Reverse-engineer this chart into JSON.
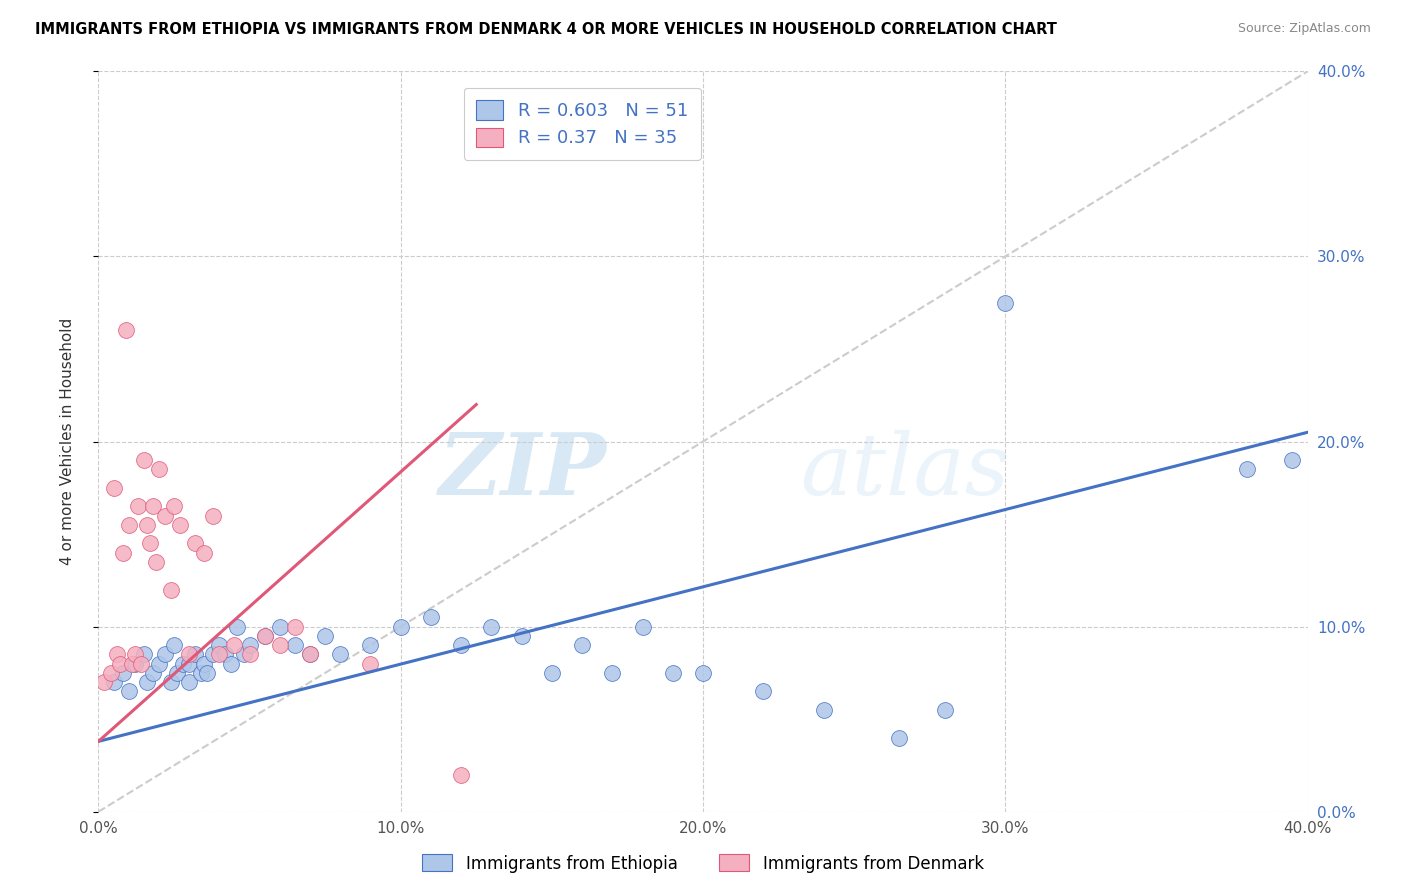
{
  "title": "IMMIGRANTS FROM ETHIOPIA VS IMMIGRANTS FROM DENMARK 4 OR MORE VEHICLES IN HOUSEHOLD CORRELATION CHART",
  "source": "Source: ZipAtlas.com",
  "ylabel": "4 or more Vehicles in Household",
  "legend_label1": "Immigrants from Ethiopia",
  "legend_label2": "Immigrants from Denmark",
  "R1": 0.603,
  "N1": 51,
  "R2": 0.37,
  "N2": 35,
  "color1": "#aec6e8",
  "color2": "#f4b0c0",
  "line_color1": "#4472c4",
  "line_color2": "#e05878",
  "xmin": 0.0,
  "xmax": 0.4,
  "ymin": 0.0,
  "ymax": 0.4,
  "xticks": [
    0.0,
    0.1,
    0.2,
    0.3,
    0.4
  ],
  "yticks": [
    0.0,
    0.1,
    0.2,
    0.3,
    0.4
  ],
  "xtick_labels": [
    "0.0%",
    "10.0%",
    "20.0%",
    "30.0%",
    "40.0%"
  ],
  "ytick_labels_right": [
    "0.0%",
    "10.0%",
    "20.0%",
    "30.0%",
    "40.0%"
  ],
  "watermark_zip": "ZIP",
  "watermark_atlas": "atlas",
  "blue_line_x0": 0.0,
  "blue_line_y0": 0.038,
  "blue_line_x1": 0.4,
  "blue_line_y1": 0.205,
  "pink_line_x0": 0.0,
  "pink_line_y0": 0.038,
  "pink_line_x1": 0.125,
  "pink_line_y1": 0.22,
  "blue_scatter_x": [
    0.005,
    0.008,
    0.01,
    0.012,
    0.015,
    0.016,
    0.018,
    0.02,
    0.022,
    0.024,
    0.025,
    0.026,
    0.028,
    0.03,
    0.03,
    0.032,
    0.034,
    0.035,
    0.036,
    0.038,
    0.04,
    0.042,
    0.044,
    0.046,
    0.048,
    0.05,
    0.055,
    0.06,
    0.065,
    0.07,
    0.075,
    0.08,
    0.09,
    0.1,
    0.11,
    0.12,
    0.13,
    0.14,
    0.15,
    0.16,
    0.17,
    0.18,
    0.19,
    0.2,
    0.22,
    0.24,
    0.265,
    0.28,
    0.3,
    0.38,
    0.395
  ],
  "blue_scatter_y": [
    0.07,
    0.075,
    0.065,
    0.08,
    0.085,
    0.07,
    0.075,
    0.08,
    0.085,
    0.07,
    0.09,
    0.075,
    0.08,
    0.07,
    0.08,
    0.085,
    0.075,
    0.08,
    0.075,
    0.085,
    0.09,
    0.085,
    0.08,
    0.1,
    0.085,
    0.09,
    0.095,
    0.1,
    0.09,
    0.085,
    0.095,
    0.085,
    0.09,
    0.1,
    0.105,
    0.09,
    0.1,
    0.095,
    0.075,
    0.09,
    0.075,
    0.1,
    0.075,
    0.075,
    0.065,
    0.055,
    0.04,
    0.055,
    0.275,
    0.185,
    0.19
  ],
  "pink_scatter_x": [
    0.002,
    0.004,
    0.005,
    0.006,
    0.007,
    0.008,
    0.009,
    0.01,
    0.011,
    0.012,
    0.013,
    0.014,
    0.015,
    0.016,
    0.017,
    0.018,
    0.019,
    0.02,
    0.022,
    0.024,
    0.025,
    0.027,
    0.03,
    0.032,
    0.035,
    0.038,
    0.04,
    0.045,
    0.05,
    0.055,
    0.06,
    0.065,
    0.07,
    0.09,
    0.12
  ],
  "pink_scatter_y": [
    0.07,
    0.075,
    0.175,
    0.085,
    0.08,
    0.14,
    0.26,
    0.155,
    0.08,
    0.085,
    0.165,
    0.08,
    0.19,
    0.155,
    0.145,
    0.165,
    0.135,
    0.185,
    0.16,
    0.12,
    0.165,
    0.155,
    0.085,
    0.145,
    0.14,
    0.16,
    0.085,
    0.09,
    0.085,
    0.095,
    0.09,
    0.1,
    0.085,
    0.08,
    0.02
  ]
}
